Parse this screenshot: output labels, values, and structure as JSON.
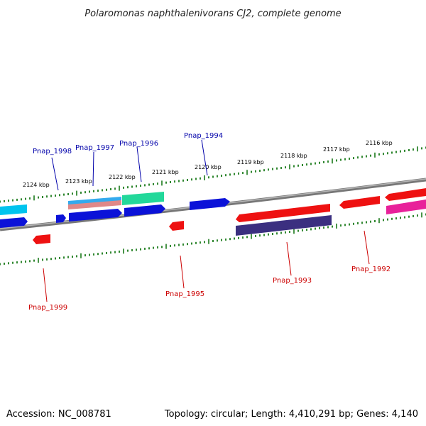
{
  "title": "Polaromonas naphthalenivorans CJ2, complete genome",
  "footer": {
    "accession": "Accession: NC_008781",
    "summary": "Topology: circular; Length: 4,410,291 bp; Genes: 4,140"
  },
  "colors": {
    "backbone": "#888888",
    "tick": "#1a7a1a",
    "label_top": "#0000aa",
    "label_bottom": "#cc0000"
  },
  "scale": {
    "unit": "kbp",
    "labels": [
      "2124 kbp",
      "2123 kbp",
      "2122 kbp",
      "2121 kbp",
      "2120 kbp",
      "2119 kbp",
      "2118 kbp",
      "2117 kbp",
      "2116 kbp"
    ]
  },
  "genes": {
    "labeled": [
      {
        "id": "Pnap_1998",
        "side": "top"
      },
      {
        "id": "Pnap_1997",
        "side": "top"
      },
      {
        "id": "Pnap_1996",
        "side": "top"
      },
      {
        "id": "Pnap_1994",
        "side": "top"
      },
      {
        "id": "Pnap_1999",
        "side": "bottom"
      },
      {
        "id": "Pnap_1995",
        "side": "bottom"
      },
      {
        "id": "Pnap_1993",
        "side": "bottom"
      },
      {
        "id": "Pnap_1992",
        "side": "bottom"
      }
    ]
  }
}
